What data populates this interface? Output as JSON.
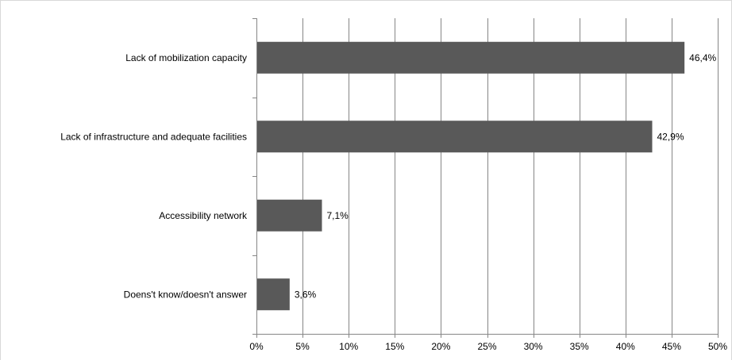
{
  "chart_data": {
    "type": "bar",
    "orientation": "horizontal",
    "categories": [
      "Lack of mobilization capacity",
      "Lack of infrastructure and adequate facilities",
      "Accessibility network",
      "Doens't know/doesn't answer"
    ],
    "values": [
      46.4,
      42.9,
      7.1,
      3.6
    ],
    "value_labels": [
      "46,4%",
      "42,9%",
      "7,1%",
      "3,6%"
    ],
    "xlim": [
      0,
      50
    ],
    "x_ticks": [
      0,
      5,
      10,
      15,
      20,
      25,
      30,
      35,
      40,
      45,
      50
    ],
    "x_tick_labels": [
      "0%",
      "5%",
      "10%",
      "15%",
      "20%",
      "25%",
      "30%",
      "35%",
      "40%",
      "45%",
      "50%"
    ],
    "grid": true,
    "legend": false,
    "title": "",
    "xlabel": "",
    "ylabel": "",
    "bar_color": "#595959"
  }
}
